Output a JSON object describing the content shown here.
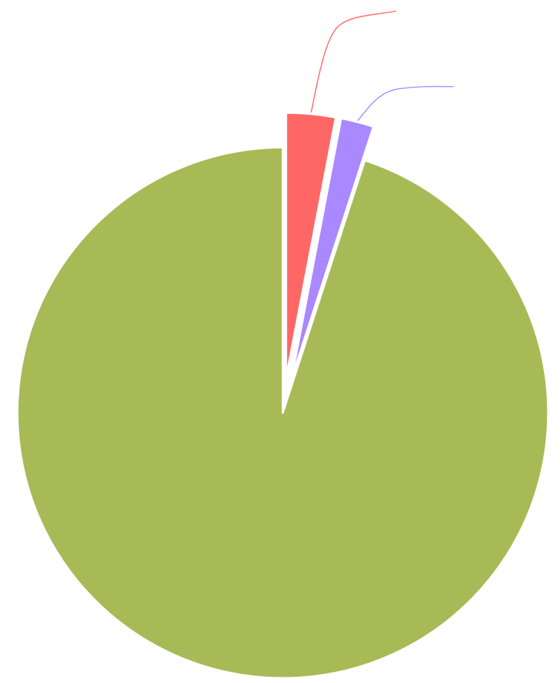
{
  "chart_data": {
    "type": "pie",
    "title": "",
    "slices": [
      {
        "value": 3,
        "color": "#ff6666",
        "exploded": true,
        "leader_line": true
      },
      {
        "value": 2,
        "color": "#aa88ff",
        "exploded": true,
        "leader_line": true
      },
      {
        "value": 95,
        "color": "#a8ba56",
        "exploded": false,
        "leader_line": false
      }
    ],
    "start_angle": "12 o'clock",
    "direction": "clockwise",
    "legend": "none",
    "background": "#ffffff"
  }
}
